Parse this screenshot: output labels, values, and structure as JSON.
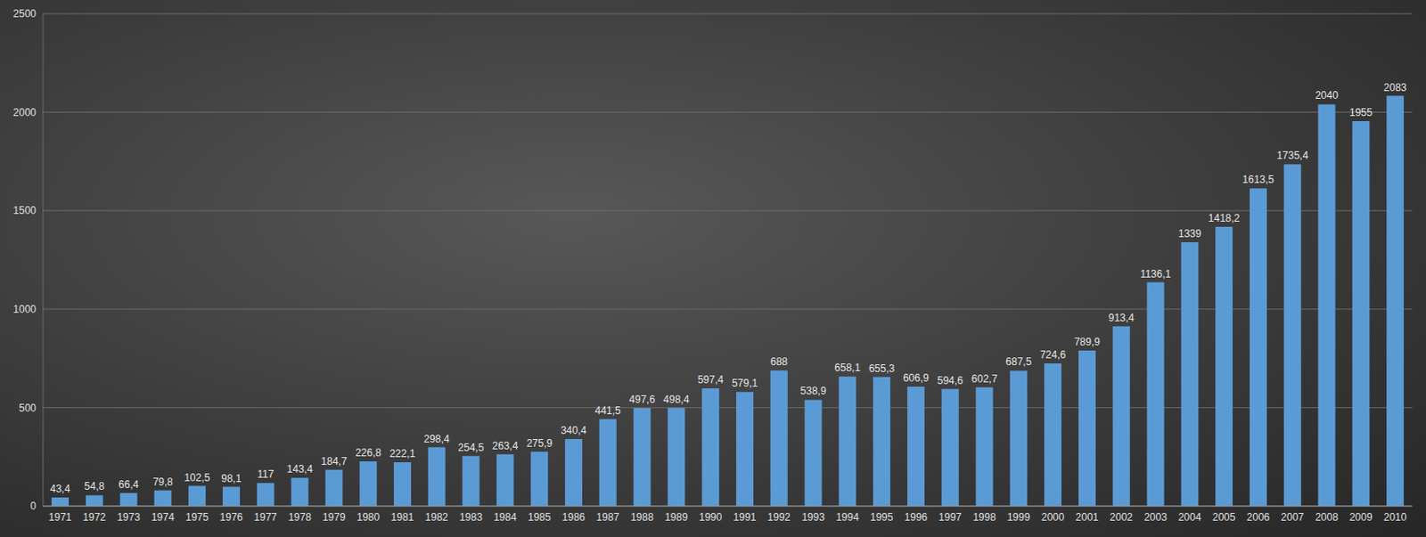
{
  "chart_data": {
    "type": "bar",
    "categories": [
      "1971",
      "1972",
      "1973",
      "1974",
      "1975",
      "1976",
      "1977",
      "1978",
      "1979",
      "1980",
      "1981",
      "1982",
      "1983",
      "1984",
      "1985",
      "1986",
      "1987",
      "1988",
      "1989",
      "1990",
      "1991",
      "1992",
      "1993",
      "1994",
      "1995",
      "1996",
      "1997",
      "1998",
      "1999",
      "2000",
      "2001",
      "2002",
      "2003",
      "2004",
      "2005",
      "2006",
      "2007",
      "2008",
      "2009",
      "2010"
    ],
    "values": [
      43.4,
      54.8,
      66.4,
      79.8,
      102.5,
      98.1,
      117,
      143.4,
      184.7,
      226.8,
      222.1,
      298.4,
      254.5,
      263.4,
      275.9,
      340.4,
      441.5,
      497.6,
      498.4,
      597.4,
      579.1,
      688,
      538.9,
      658.1,
      655.3,
      606.9,
      594.6,
      602.7,
      687.5,
      724.6,
      789.9,
      913.4,
      1136.1,
      1339,
      1418.2,
      1613.5,
      1735.4,
      2040,
      1955,
      2083
    ],
    "value_labels": [
      "43,4",
      "54,8",
      "66,4",
      "79,8",
      "102,5",
      "98,1",
      "117",
      "143,4",
      "184,7",
      "226,8",
      "222,1",
      "298,4",
      "254,5",
      "263,4",
      "275,9",
      "340,4",
      "441,5",
      "497,6",
      "498,4",
      "597,4",
      "579,1",
      "688",
      "538,9",
      "658,1",
      "655,3",
      "606,9",
      "594,6",
      "602,7",
      "687,5",
      "724,6",
      "789,9",
      "913,4",
      "1136,1",
      "1339",
      "1418,2",
      "1613,5",
      "1735,4",
      "2040",
      "1955",
      "2083"
    ],
    "color": "#5b9bd5",
    "ylim": [
      0,
      2500
    ],
    "yticks": [
      0,
      500,
      1000,
      1500,
      2000,
      2500
    ],
    "grid": true,
    "data_labels": true
  }
}
